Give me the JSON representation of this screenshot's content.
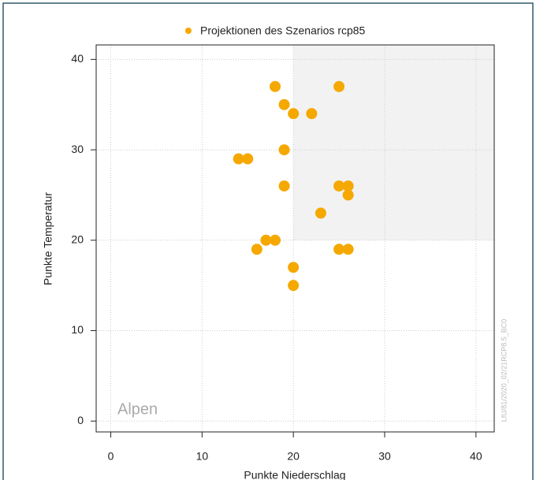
{
  "chart_data": {
    "type": "scatter",
    "legend_label": "Projektionen des Szenarios rcp85",
    "x_label": "Punkte Niederschlag",
    "y_label": "Punkte Temperatur",
    "region_label": "Alpen",
    "source_note": "LfU/81/2020_02/21RCP8.5_BC0",
    "color": "#f5a800",
    "grid": true,
    "shaded_region": {
      "x": [
        20,
        42
      ],
      "y": [
        20,
        41.6
      ]
    },
    "xlim": [
      -1.6,
      42
    ],
    "ylim": [
      -1.2,
      41.6
    ],
    "xticks": [
      0,
      10,
      20,
      30,
      40
    ],
    "yticks": [
      0,
      10,
      20,
      30,
      40
    ],
    "x": [
      18,
      25,
      19,
      20,
      22,
      19,
      14,
      15,
      19,
      25,
      26,
      26,
      23,
      17,
      18,
      16,
      25,
      26,
      20,
      20
    ],
    "values": [
      37,
      37,
      35,
      34,
      34,
      30,
      29,
      29,
      26,
      26,
      26,
      25,
      23,
      20,
      20,
      19,
      19,
      19,
      17,
      15
    ]
  }
}
